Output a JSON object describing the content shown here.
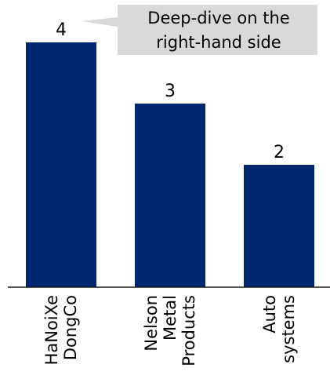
{
  "chart_data": {
    "type": "bar",
    "categories": [
      "HaNoiXe DongCo",
      "Nelson Metal Products",
      "Auto systems"
    ],
    "category_lines": [
      [
        "HaNoiXe",
        "DongCo"
      ],
      [
        "Nelson",
        "Metal",
        "Products"
      ],
      [
        "Auto",
        "systems"
      ]
    ],
    "values": [
      4,
      3,
      2
    ],
    "data_labels": [
      "4",
      "3",
      "2"
    ],
    "ylim": [
      0,
      4
    ],
    "grid": false,
    "bar_color": "#002870",
    "axis_color": "#1a1a1a"
  },
  "annotation": {
    "lines": [
      "Deep-dive on the",
      "right-hand side"
    ],
    "fill": "#d9d9d9"
  }
}
